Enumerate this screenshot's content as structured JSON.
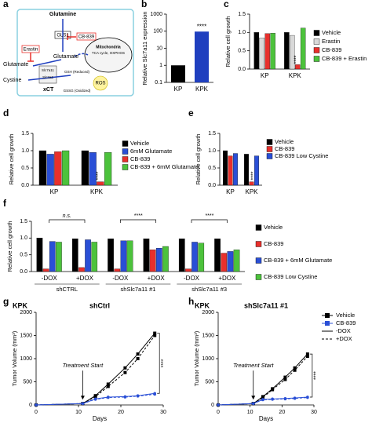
{
  "panel_labels": [
    "a",
    "b",
    "c",
    "d",
    "e",
    "f",
    "g",
    "h"
  ],
  "diagram": {
    "glutamine": "Glutamine",
    "gls1": "GLS1",
    "cb839": "CB-839",
    "erastin": "Erastin",
    "glutamate_in": "Glutamate",
    "glutamate_out": "Glutamate",
    "cystine": "Cystine",
    "xct": "xCT",
    "slc7a11": "Slc7a11",
    "slc3a2": "Slc3a2",
    "mitochondria": "Mitochondria",
    "tca": "TCA cycle, OXPHOS",
    "gsh": "GSH (Reduced)",
    "gssg": "GSSG (Oxidized)",
    "ros": "ROS"
  },
  "chart_data": [
    {
      "type": "bar",
      "ylabel": "Relative Slc7a11 expression",
      "categories": [
        "KP",
        "KPK"
      ],
      "category_colors": [
        "#000000",
        "#1f3fbf"
      ],
      "values": [
        1,
        95
      ],
      "colors": [
        "#000000",
        "#1f3fbf"
      ],
      "log_scale": true,
      "ylim": [
        0.1,
        1000
      ],
      "yticks": [
        0.1,
        1,
        10,
        100,
        1000
      ],
      "annotation": "****"
    },
    {
      "type": "grouped_bar",
      "ylabel": "Relative cell growth",
      "categories": [
        "KP",
        "KPK"
      ],
      "category_colors": [
        "#000000",
        "#1f3fbf"
      ],
      "ylim": [
        0,
        1.5
      ],
      "yticks": [
        {
          "value": 0,
          "label": "0.0"
        },
        {
          "value": 0.5,
          "label": "0.5"
        },
        {
          "value": 1,
          "label": "1.0"
        },
        {
          "value": 1.5,
          "label": "1.5"
        }
      ],
      "legend": "right",
      "annotation": "****",
      "series": [
        {
          "name": "Vehicle",
          "color": "#000000",
          "values": [
            1.0,
            1.0
          ]
        },
        {
          "name": "Erastin",
          "color": "#d9d9d9",
          "values": [
            0.85,
            0.92
          ]
        },
        {
          "name": "CB-839",
          "color": "#e8302c",
          "values": [
            0.97,
            0.12
          ]
        },
        {
          "name": "CB-839 + Erastin",
          "color": "#4cc23c",
          "values": [
            0.98,
            1.12
          ]
        }
      ]
    },
    {
      "type": "grouped_bar",
      "ylabel": "Relative cell growth",
      "categories": [
        "KP",
        "KPK"
      ],
      "category_colors": [
        "#000000",
        "#1f3fbf"
      ],
      "ylim": [
        0,
        1.5
      ],
      "yticks": [
        {
          "value": 0,
          "label": "0.0"
        },
        {
          "value": 0.5,
          "label": "0.5"
        },
        {
          "value": 1,
          "label": "1.0"
        },
        {
          "value": 1.5,
          "label": "1.5"
        }
      ],
      "legend": "right",
      "annotation": "****",
      "series": [
        {
          "name": "Vehicle",
          "color": "#000000",
          "values": [
            1.0,
            1.0
          ]
        },
        {
          "name": "6mM Glutamate",
          "color": "#2a4fd6",
          "values": [
            0.9,
            0.95
          ]
        },
        {
          "name": "CB-839",
          "color": "#e8302c",
          "values": [
            0.97,
            0.1
          ]
        },
        {
          "name": "CB-839 + 6mM Glutamate",
          "color": "#4cc23c",
          "values": [
            1.0,
            0.95
          ]
        }
      ]
    },
    {
      "type": "grouped_bar",
      "ylabel": "Relative cell growth",
      "categories": [
        "KP",
        "KPK"
      ],
      "category_colors": [
        "#000000",
        "#1f3fbf"
      ],
      "ylim": [
        0,
        1.5
      ],
      "yticks": [
        {
          "value": 0,
          "label": "0.0"
        },
        {
          "value": 0.5,
          "label": "0.5"
        },
        {
          "value": 1,
          "label": "1.0"
        },
        {
          "value": 1.5,
          "label": "1.5"
        }
      ],
      "legend": "right",
      "annotation": "****",
      "series": [
        {
          "name": "Vehicle",
          "color": "#000000",
          "values": [
            1.0,
            0.9
          ]
        },
        {
          "name": "CB-839",
          "color": "#e8302c",
          "values": [
            0.85,
            0.1
          ]
        },
        {
          "name": "CB-839 Low Cystine",
          "color": "#2a4fd6",
          "values": [
            0.92,
            0.85
          ]
        }
      ]
    },
    {
      "type": "grouped_bar",
      "ylabel": "Relative cell growth",
      "categories": [
        "-DOX",
        "+DOX",
        "-DOX",
        "+DOX",
        "-DOX",
        "+DOX"
      ],
      "groups": [
        "shCTRL",
        "shSlc7a11 #1",
        "shSlc7a11 #3"
      ],
      "annotations": [
        "n.s.",
        "****",
        "****"
      ],
      "ylim": [
        0,
        1.5
      ],
      "yticks": [
        {
          "value": 0,
          "label": "0.0"
        },
        {
          "value": 0.5,
          "label": "0.5"
        },
        {
          "value": 1,
          "label": "1.0"
        },
        {
          "value": 1.5,
          "label": "1.5"
        }
      ],
      "legend": "right",
      "series": [
        {
          "name": "Vehicle",
          "color": "#000000",
          "values": [
            1.0,
            0.98,
            0.98,
            0.98,
            0.98,
            0.98
          ]
        },
        {
          "name": "CB-839",
          "color": "#e8302c",
          "values": [
            0.08,
            0.12,
            0.08,
            0.65,
            0.08,
            0.55
          ]
        },
        {
          "name": "CB-839 + 6mM Glutamate",
          "color": "#2a4fd6",
          "values": [
            0.9,
            0.95,
            0.92,
            0.7,
            0.88,
            0.6
          ]
        },
        {
          "name": "CB-839 Low Cystine",
          "color": "#4cc23c",
          "values": [
            0.88,
            0.88,
            0.92,
            0.75,
            0.85,
            0.65
          ]
        }
      ]
    },
    {
      "type": "line",
      "title": "shCtrl",
      "model": "KPK",
      "xlabel": "Days",
      "ylabel": "Tumor Volume (mm³)",
      "annotation": "Treatment Start",
      "significance": "****",
      "x": [
        0,
        11,
        14,
        17,
        21,
        24,
        28
      ],
      "xlim": [
        0,
        30
      ],
      "xticks": [
        0,
        10,
        20,
        30
      ],
      "ylim": [
        0,
        2000
      ],
      "yticks": [
        0,
        500,
        1000,
        1500,
        2000
      ],
      "series": [
        {
          "color": "#000000",
          "dashed": false,
          "values": [
            0,
            30,
            200,
            450,
            800,
            1100,
            1550
          ]
        },
        {
          "color": "#000000",
          "dashed": true,
          "values": [
            0,
            30,
            180,
            400,
            700,
            1000,
            1500
          ]
        },
        {
          "color": "#2a4fd6",
          "dashed": false,
          "values": [
            0,
            30,
            130,
            170,
            180,
            200,
            250
          ]
        },
        {
          "color": "#2a4fd6",
          "dashed": true,
          "values": [
            0,
            30,
            120,
            160,
            170,
            190,
            230
          ]
        }
      ]
    },
    {
      "type": "line",
      "title": "shSlc7a11 #1",
      "model": "KPK",
      "xlabel": "Days",
      "ylabel": "Tumor Volume (mm³)",
      "annotation": "Treatment Start",
      "significance": "****",
      "x": [
        0,
        11,
        14,
        17,
        21,
        24,
        28
      ],
      "xlim": [
        0,
        30
      ],
      "xticks": [
        0,
        10,
        20,
        30
      ],
      "ylim": [
        0,
        2000
      ],
      "yticks": [
        0,
        500,
        1000,
        1500,
        2000
      ],
      "legend": [
        {
          "label": "Vehicle",
          "color": "#000000",
          "dashed": false,
          "swatch": true
        },
        {
          "label": "CB-839",
          "color": "#2a4fd6",
          "dashed": false,
          "swatch": true
        },
        {
          "label": "-DOX",
          "color": "#000000",
          "dashed": false,
          "swatch": false
        },
        {
          "label": "+DOX",
          "color": "#000000",
          "dashed": true,
          "swatch": false
        }
      ],
      "series": [
        {
          "color": "#000000",
          "dashed": false,
          "values": [
            0,
            30,
            180,
            350,
            600,
            800,
            1100
          ]
        },
        {
          "color": "#000000",
          "dashed": true,
          "values": [
            0,
            30,
            160,
            330,
            550,
            750,
            1050
          ]
        },
        {
          "color": "#2a4fd6",
          "dashed": false,
          "values": [
            0,
            30,
            120,
            130,
            140,
            150,
            170
          ]
        },
        {
          "color": "#2a4fd6",
          "dashed": true,
          "values": [
            0,
            30,
            110,
            120,
            130,
            140,
            160
          ]
        }
      ]
    }
  ]
}
